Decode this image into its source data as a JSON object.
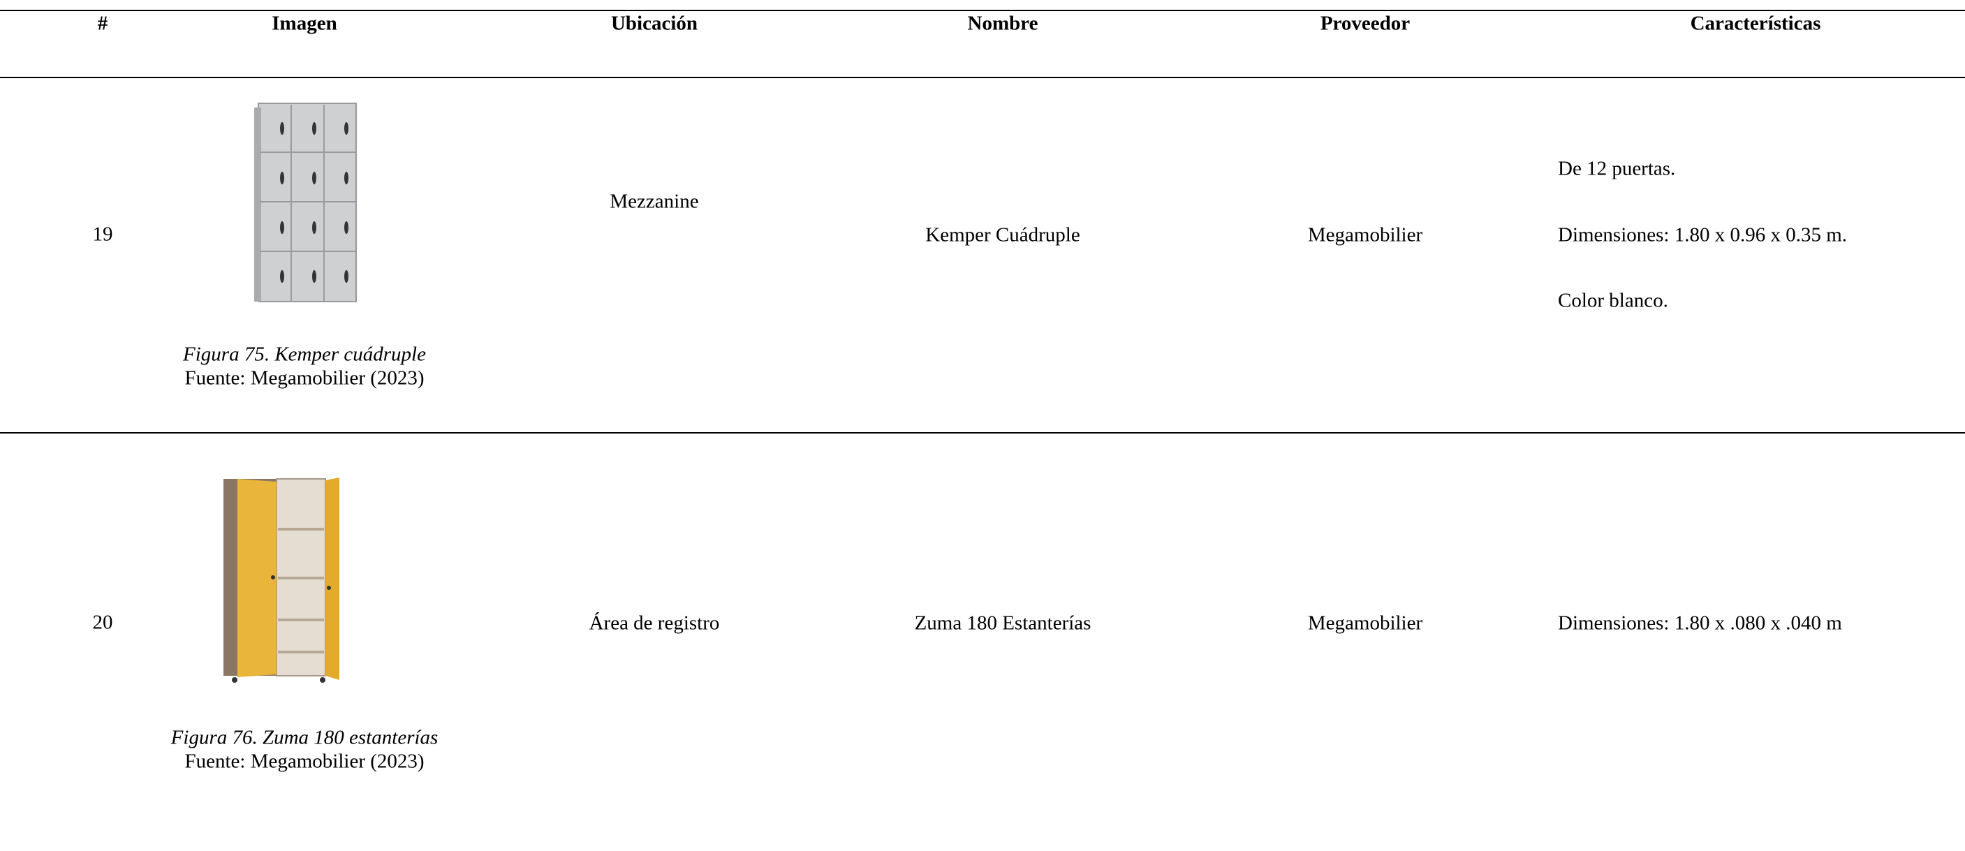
{
  "table": {
    "columns": [
      "#",
      "Imagen",
      "Ubicación",
      "Nombre",
      "Proveedor",
      "Características"
    ],
    "rows": [
      {
        "number": "19",
        "figure": "Figura 75. Kemper cuádruple",
        "source": "Fuente: Megamobilier (2023)",
        "location": "Mezzanine",
        "name": "Kemper Cuádruple",
        "provider": "Megamobilier",
        "features": [
          "De 12 puertas.",
          "Dimensiones: 1.80 x 0.96 x 0.35 m.",
          "Color blanco."
        ]
      },
      {
        "number": "20",
        "figure": "Figura 76. Zuma 180 estanterías",
        "source": "Fuente: Megamobilier (2023)",
        "location": "Área de registro",
        "name": "Zuma 180 Estanterías",
        "provider": "Megamobilier",
        "features": [
          "Dimensiones: 1.80 x .080 x .040 m"
        ]
      }
    ]
  }
}
